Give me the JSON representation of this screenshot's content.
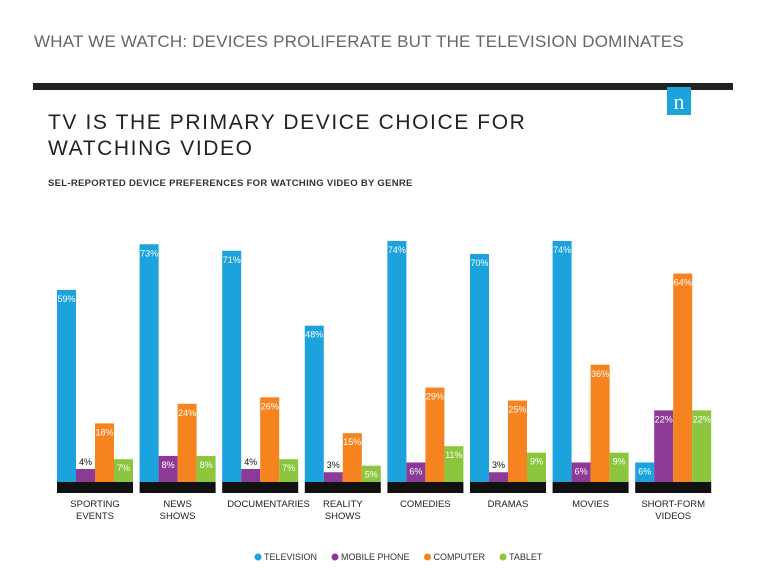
{
  "header": "WHAT WE WATCH: DEVICES PROLIFERATE BUT THE TELEVISION DOMINATES",
  "logo": "n",
  "chart_data": {
    "type": "bar",
    "title": "TV IS THE PRIMARY DEVICE CHOICE FOR WATCHING VIDEO",
    "subtitle": "SEL-REPORTED DEVICE PREFERENCES FOR WATCHING VIDEO BY GENRE",
    "categories": [
      "SPORTING EVENTS",
      "NEWS SHOWS",
      "DOCUMENTARIES",
      "REALITY SHOWS",
      "COMEDIES",
      "DRAMAS",
      "MOVIES",
      "SHORT-FORM VIDEOS"
    ],
    "series": [
      {
        "name": "TELEVISION",
        "color": "#1ca3dd",
        "values": [
          59,
          73,
          71,
          48,
          74,
          70,
          74,
          6
        ],
        "value_labels": [
          "59%",
          "73%",
          "71%",
          "48%",
          "74%",
          "70%",
          "74%",
          "6%"
        ]
      },
      {
        "name": "MOBILE PHONE",
        "color": "#8b3a96",
        "values": [
          4,
          8,
          4,
          3,
          6,
          3,
          6,
          22
        ],
        "value_labels": [
          "4%",
          "8%",
          "4%",
          "3%",
          "6%",
          "3%",
          "6%",
          "22%"
        ]
      },
      {
        "name": "COMPUTER",
        "color": "#f5831f",
        "values": [
          18,
          24,
          26,
          15,
          29,
          25,
          36,
          64
        ],
        "value_labels": [
          "18%",
          "24%",
          "26%",
          "15%",
          "29%",
          "25%",
          "36%",
          "64%"
        ]
      },
      {
        "name": "TABLET",
        "color": "#8cc63f",
        "values": [
          7,
          8,
          7,
          5,
          11,
          9,
          9,
          22
        ],
        "value_labels": [
          "7%",
          "8%",
          "7%",
          "5%",
          "11%",
          "9%",
          "9%",
          "22%"
        ]
      }
    ],
    "legend": "bottom"
  }
}
